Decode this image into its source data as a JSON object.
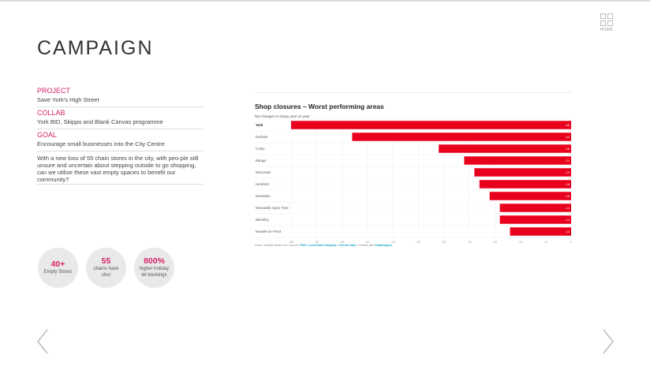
{
  "page": {
    "title": "CAMPAIGN"
  },
  "home": {
    "label": "HOME",
    "icon": "grid-icon"
  },
  "info": [
    {
      "label": "PROJECT",
      "value": "Save York's High Street"
    },
    {
      "label": "COLLAB",
      "value": "York BID, Skippo and Blank Canvas programme"
    },
    {
      "label": "GOAL",
      "value": "Encourage small businesses into the City Centre"
    }
  ],
  "description": "With a new loss of 55 chain stores in the city, with peo-ple still unsure and uncertain about stepping outside to go shopping, can we utilise these vast empty spaces to benefit our community?",
  "stats": [
    {
      "number": "40+",
      "caption": "Empty Stores"
    },
    {
      "number": "55",
      "caption": "chains have shut"
    },
    {
      "number": "800%",
      "caption": "higher holiday let bookings"
    }
  ],
  "footer": {
    "prefix": "Chart: YorkMix Media Ltd • Source: ",
    "source_link": "PWC / Local Data Company",
    "sep": " • ",
    "data_link": "Get the data",
    "created": " • Created with ",
    "tool_link": "Datawrapper"
  },
  "colors": {
    "accent": "#d6236b",
    "bar": "#e8001c",
    "link": "#1aa7c9"
  },
  "nav": {
    "prev": "chevron-left-icon",
    "next": "chevron-right-icon"
  },
  "chart_data": {
    "type": "bar",
    "orientation": "horizontal",
    "title": "Shop closures – Worst performing areas",
    "subtitle": "Net changes in shops year on year",
    "categories": [
      "York",
      "Durham",
      "Corby",
      "Bangor",
      "Worcester",
      "Hereford",
      "Nuneaton",
      "Newcastle Upon Tyne",
      "Barnsley",
      "Newark-on-Trent"
    ],
    "values": [
      -55,
      -43,
      -26,
      -21,
      -19,
      -18,
      -16,
      -14,
      -14,
      -12
    ],
    "xlim": [
      -55,
      0
    ],
    "xticks": [
      -55,
      -50,
      -45,
      -40,
      -35,
      -30,
      -25,
      -20,
      -15,
      -10,
      -5,
      0
    ],
    "xlabel": "",
    "ylabel": "",
    "grid": true,
    "legend": "none"
  }
}
